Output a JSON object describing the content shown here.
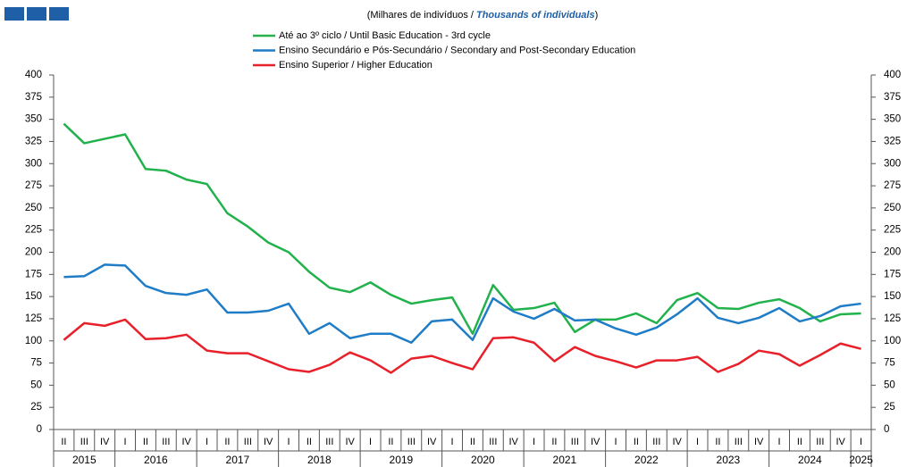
{
  "chart_data": {
    "type": "line",
    "subtitle": [
      "(Milhares de indivíduos / ",
      "Thousands of individuals",
      ")"
    ],
    "categories": [
      "II",
      "III",
      "IV",
      "I",
      "II",
      "III",
      "IV",
      "I",
      "II",
      "III",
      "IV",
      "I",
      "II",
      "III",
      "IV",
      "I",
      "II",
      "III",
      "IV",
      "I",
      "II",
      "III",
      "IV",
      "I",
      "II",
      "III",
      "IV",
      "I",
      "II",
      "III",
      "IV",
      "I",
      "II",
      "III",
      "IV",
      "I",
      "II",
      "III",
      "IV",
      "I"
    ],
    "years": [
      "2015",
      "2016",
      "2017",
      "2018",
      "2019",
      "2020",
      "2021",
      "2022",
      "2023",
      "2024",
      "2025"
    ],
    "series": [
      {
        "name": "Até ao 3º ciclo / Until Basic Education - 3rd cycle",
        "color": "#21b24b",
        "values": [
          345,
          323,
          328,
          333,
          294,
          292,
          282,
          277,
          244,
          229,
          211,
          200,
          178,
          160,
          155,
          166,
          152,
          142,
          146,
          149,
          108,
          163,
          135,
          137,
          143,
          110,
          124,
          124,
          131,
          120,
          146,
          154,
          137,
          136,
          143,
          147,
          137,
          122,
          130,
          131
        ]
      },
      {
        "name": "Ensino Secundário e Pós-Secundário / Secondary and Post-Secondary Education",
        "color": "#1f7cc6",
        "values": [
          172,
          173,
          186,
          185,
          162,
          154,
          152,
          158,
          132,
          132,
          134,
          142,
          108,
          120,
          103,
          108,
          108,
          98,
          122,
          124,
          101,
          148,
          133,
          125,
          136,
          123,
          124,
          114,
          107,
          115,
          130,
          148,
          126,
          120,
          126,
          137,
          122,
          128,
          139,
          142
        ]
      },
      {
        "name": "Ensino Superior / Higher Education",
        "color": "#e8202a",
        "values": [
          101,
          120,
          117,
          124,
          102,
          103,
          107,
          89,
          86,
          86,
          77,
          68,
          65,
          73,
          87,
          78,
          64,
          80,
          83,
          75,
          68,
          103,
          104,
          98,
          77,
          93,
          83,
          77,
          70,
          78,
          78,
          82,
          65,
          74,
          89,
          85,
          72,
          84,
          97,
          91
        ]
      }
    ],
    "ylim": [
      0,
      400
    ],
    "yticks": [
      0,
      25,
      50,
      75,
      100,
      125,
      150,
      175,
      200,
      225,
      250,
      275,
      300,
      325,
      350,
      375,
      400
    ],
    "grid": false
  }
}
